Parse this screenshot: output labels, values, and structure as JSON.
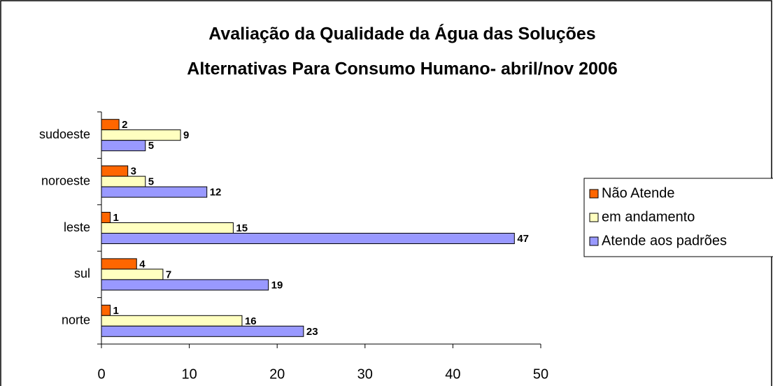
{
  "chart_data": {
    "type": "barh",
    "title": [
      "Avaliação da Qualidade da Água das Soluções",
      "Alternativas Para Consumo Humano- abril/nov 2006"
    ],
    "categories": [
      "norte",
      "sul",
      "leste",
      "noroeste",
      "sudoeste"
    ],
    "series": [
      {
        "name": "Não Atende",
        "color": "#ff6600",
        "values": [
          1,
          4,
          1,
          3,
          2
        ]
      },
      {
        "name": "em andamento",
        "color": "#ffffc0",
        "values": [
          16,
          7,
          15,
          5,
          9
        ]
      },
      {
        "name": "Atende aos padrões",
        "color": "#9999ff",
        "values": [
          23,
          19,
          47,
          12,
          5
        ]
      }
    ],
    "xlim": [
      0,
      50
    ],
    "xticks": [
      0,
      10,
      20,
      30,
      40,
      50
    ],
    "grid": false,
    "legend": "right"
  }
}
